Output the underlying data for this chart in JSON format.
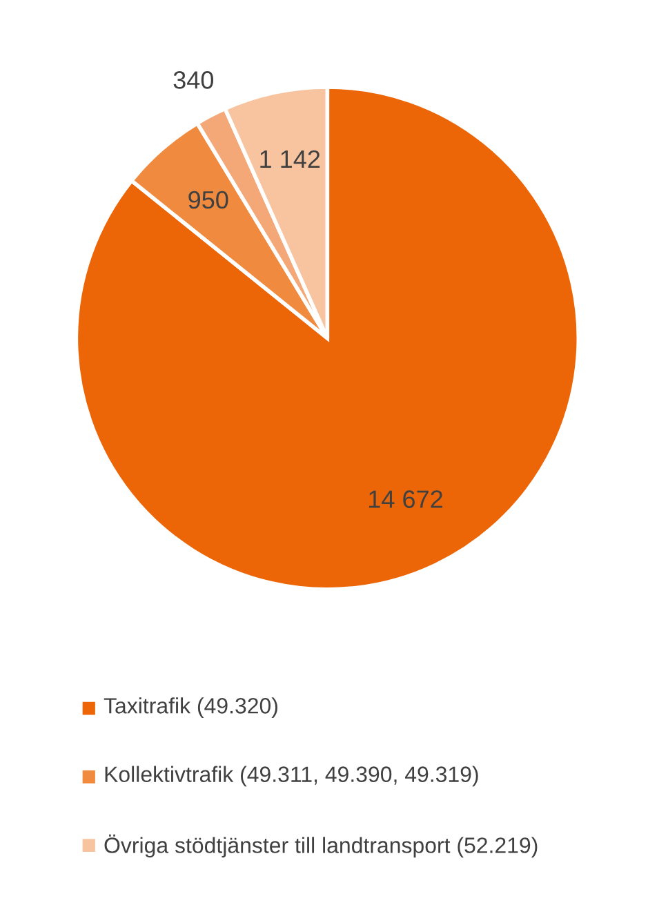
{
  "chart_data": {
    "type": "pie",
    "categories": [
      "Taxitrafik (49.320)",
      "Kollektivtrafik (49.311, 49.390, 49.319)",
      null,
      "Övriga stödtjänster till landtransport (52.219)"
    ],
    "values": [
      14672,
      950,
      340,
      1142
    ],
    "value_labels": [
      "14 672",
      "950",
      "340",
      "1 142"
    ],
    "colors": [
      "#ec6608",
      "#f08a3e",
      "#f4a877",
      "#f8c4a0"
    ],
    "legend": "bottom"
  }
}
